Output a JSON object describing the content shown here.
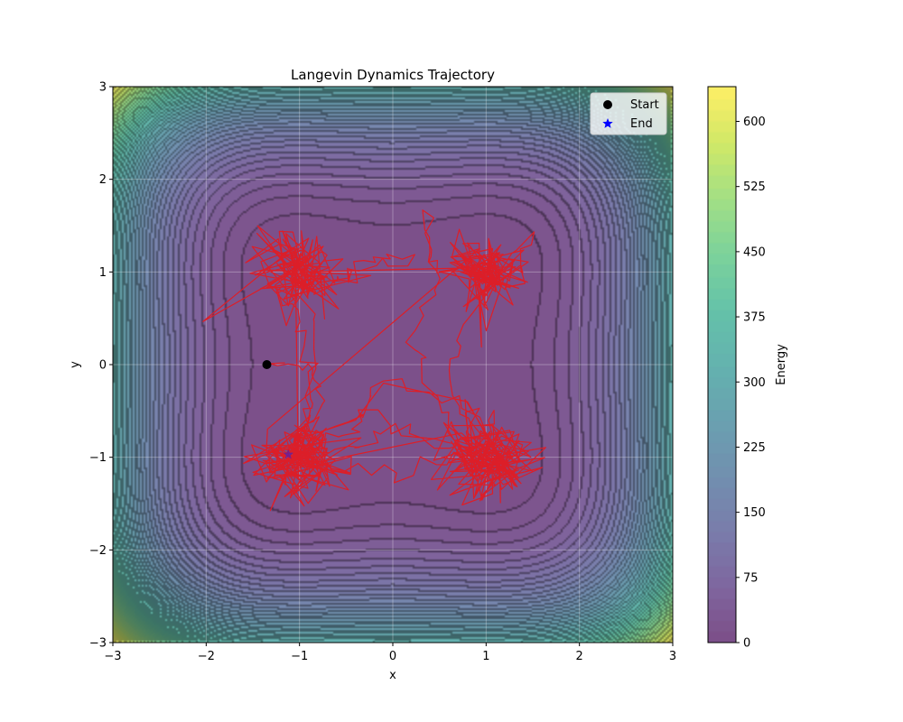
{
  "chart_data": {
    "type": "contour",
    "title": "Langevin Dynamics Trajectory",
    "xlabel": "x",
    "ylabel": "y",
    "xlim": [
      -3,
      3
    ],
    "ylim": [
      -3,
      3
    ],
    "xticks": [
      -3,
      -2,
      -1,
      0,
      1,
      2,
      3
    ],
    "yticks": [
      -3,
      -2,
      -1,
      0,
      1,
      2,
      3
    ],
    "xtick_labels": [
      "−3",
      "−2",
      "−1",
      "0",
      "1",
      "2",
      "3"
    ],
    "ytick_labels": [
      "−3",
      "−2",
      "−1",
      "0",
      "1",
      "2",
      "3"
    ],
    "grid": true,
    "energy_function": "(x^2 - 1)^2 + (y^2 - 1)^2 scaled to a maximum of about 640 at the corners",
    "energy_max": 640,
    "contour_levels": 50,
    "colormap": "viridis",
    "contour_alpha": 0.7,
    "colorbar": {
      "label": "Energy",
      "range": [
        0,
        640
      ],
      "ticks": [
        0,
        75,
        150,
        225,
        300,
        375,
        450,
        525,
        600
      ],
      "tick_labels": [
        "0",
        "75",
        "150",
        "225",
        "300",
        "375",
        "450",
        "525",
        "600"
      ]
    },
    "legend": {
      "placement": "upper-right",
      "entries": [
        {
          "label": "Start",
          "marker": "circle",
          "color": "#000000"
        },
        {
          "label": "End",
          "marker": "star",
          "color": "#0000ff"
        }
      ]
    },
    "trajectory": {
      "color": "#dc1e28",
      "start": [
        -1.35,
        0.0
      ],
      "end": [
        -1.12,
        -0.97
      ],
      "basins": [
        {
          "center": [
            -1.0,
            1.0
          ],
          "spread": 0.22
        },
        {
          "center": [
            1.0,
            1.0
          ],
          "spread": 0.2
        },
        {
          "center": [
            -1.0,
            -1.0
          ],
          "spread": 0.22
        },
        {
          "center": [
            1.0,
            -1.0
          ],
          "spread": 0.22
        }
      ],
      "waypoints": [
        [
          -1.35,
          0.0
        ],
        [
          -0.9,
          0.05
        ],
        [
          -0.75,
          -0.35
        ],
        [
          -1.0,
          -0.95
        ],
        [
          -0.6,
          -0.8
        ],
        [
          -0.2,
          -0.6
        ],
        [
          0.3,
          -0.8
        ],
        [
          0.8,
          -0.9
        ],
        [
          1.1,
          -0.5
        ],
        [
          0.9,
          -1.2
        ],
        [
          0.4,
          -0.3
        ],
        [
          0.2,
          0.3
        ],
        [
          0.5,
          0.9
        ],
        [
          0.3,
          1.6
        ],
        [
          0.4,
          1.1
        ],
        [
          0.9,
          1.0
        ],
        [
          1.2,
          0.7
        ],
        [
          1.5,
          1.45
        ],
        [
          0.7,
          0.4
        ],
        [
          0.6,
          -0.2
        ],
        [
          0.9,
          -0.9
        ],
        [
          0.0,
          -0.7
        ],
        [
          -0.5,
          -0.9
        ],
        [
          -1.0,
          -1.05
        ],
        [
          -0.8,
          0.4
        ],
        [
          -1.0,
          0.95
        ],
        [
          -0.6,
          0.9
        ],
        [
          -0.4,
          1.0
        ],
        [
          0.2,
          1.15
        ],
        [
          -0.3,
          1.1
        ],
        [
          -0.8,
          0.8
        ],
        [
          -1.2,
          0.85
        ],
        [
          -0.9,
          0.3
        ],
        [
          -0.85,
          -0.4
        ],
        [
          -1.1,
          -1.0
        ],
        [
          -0.2,
          -1.1
        ],
        [
          0.5,
          -1.1
        ],
        [
          1.0,
          -0.85
        ],
        [
          1.3,
          -1.3
        ],
        [
          0.8,
          -0.4
        ],
        [
          -0.1,
          -0.2
        ],
        [
          -0.4,
          -0.6
        ],
        [
          -1.0,
          -0.8
        ],
        [
          -1.12,
          -0.97
        ]
      ]
    }
  }
}
